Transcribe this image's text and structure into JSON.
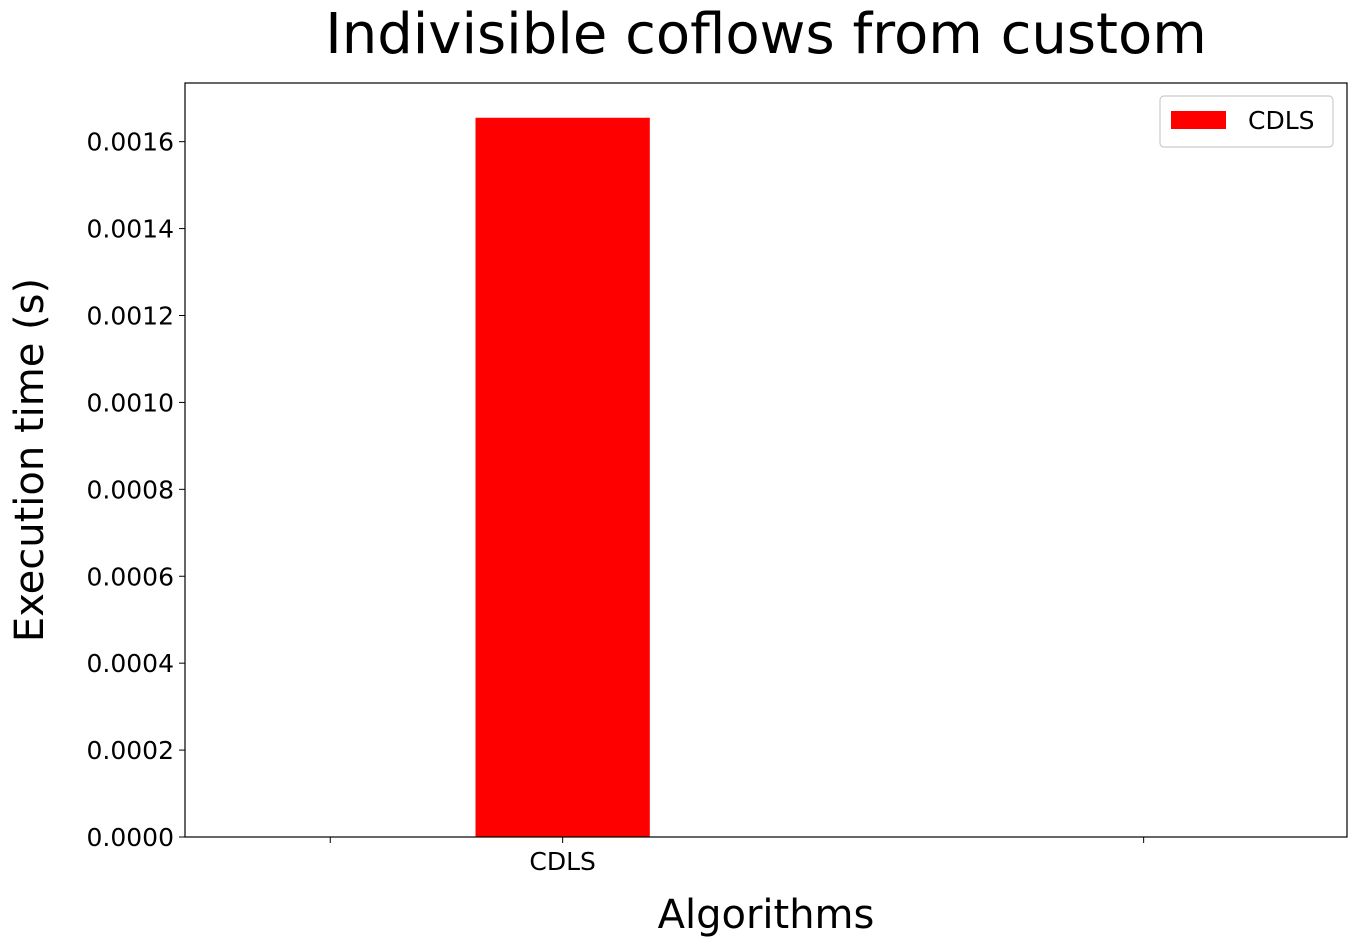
{
  "chart_data": {
    "type": "bar",
    "title": "Indivisible coflows from custom",
    "xlabel": "Algorithms",
    "ylabel": "Execution time (s)",
    "categories": [
      "CDLS"
    ],
    "series": [
      {
        "name": "CDLS",
        "values": [
          0.001655
        ],
        "color": "#ff0000"
      }
    ],
    "ylim": [
      0,
      0.001735
    ],
    "xlim": [
      -0.65,
      1.35
    ],
    "x_ticks": [
      -0.4,
      0,
      1.0
    ],
    "y_ticks": [
      {
        "value": 0.0,
        "label": "0.0000"
      },
      {
        "value": 0.0002,
        "label": "0.0002"
      },
      {
        "value": 0.0004,
        "label": "0.0004"
      },
      {
        "value": 0.0006,
        "label": "0.0006"
      },
      {
        "value": 0.0008,
        "label": "0.0008"
      },
      {
        "value": 0.001,
        "label": "0.0010"
      },
      {
        "value": 0.0012,
        "label": "0.0012"
      },
      {
        "value": 0.0014,
        "label": "0.0014"
      },
      {
        "value": 0.0016,
        "label": "0.0016"
      }
    ],
    "grid": false,
    "legend": {
      "position": "top-right",
      "entries": [
        {
          "label": "CDLS",
          "color": "#ff0000"
        }
      ]
    }
  }
}
